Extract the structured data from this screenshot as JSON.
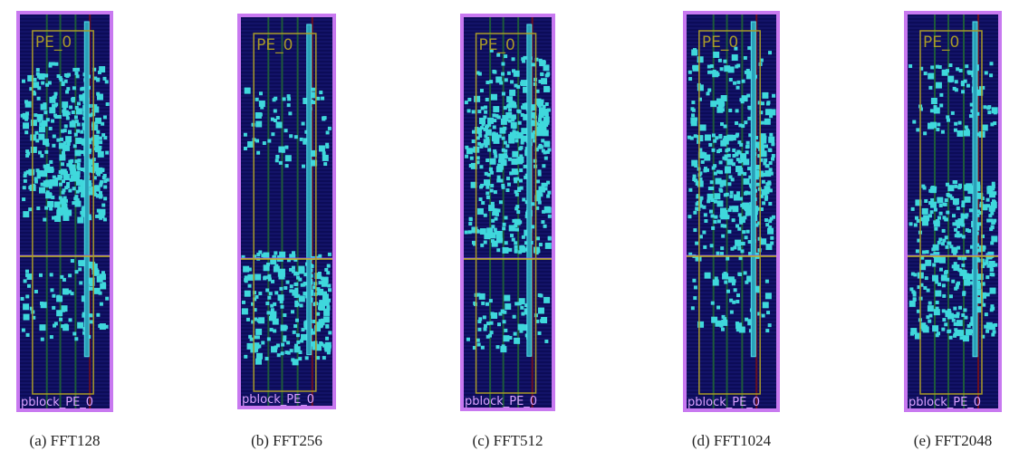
{
  "panels": [
    {
      "label": "PE_0",
      "pblock": "pblock_PE_0",
      "caption": "(a) FFT128"
    },
    {
      "label": "PE_0",
      "pblock": "pblock_PE_0",
      "caption": "(b) FFT256"
    },
    {
      "label": "PE_0",
      "pblock": "pblock_PE_0",
      "caption": "(c) FFT512"
    },
    {
      "label": "PE_0",
      "pblock": "pblock_PE_0",
      "caption": "(d) FFT1024"
    },
    {
      "label": "PE_0",
      "pblock": "pblock_PE_0",
      "caption": "(e) FFT2048"
    }
  ]
}
